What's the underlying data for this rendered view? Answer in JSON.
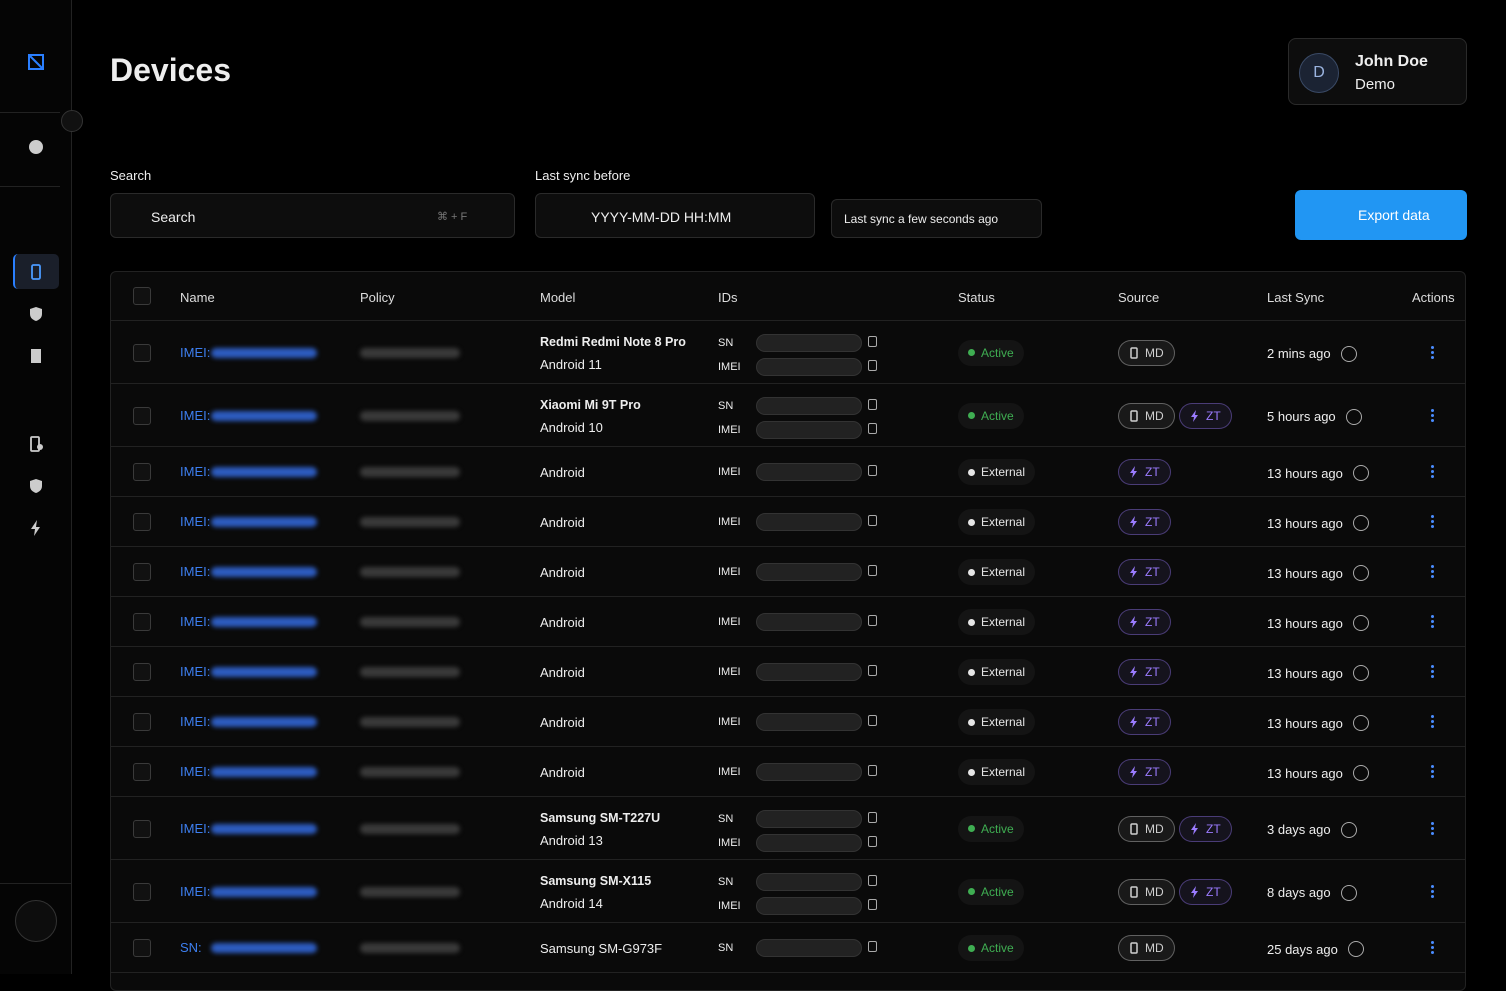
{
  "header": {
    "title": "Devices",
    "user": {
      "initial": "D",
      "name": "John Doe",
      "org": "Demo"
    }
  },
  "filters": {
    "search_label": "Search",
    "search_placeholder": "Search",
    "search_shortcut": "⌘ + F",
    "sync_label": "Last sync before",
    "sync_placeholder": "YYYY-MM-DD HH:MM",
    "last_sync": "Last sync a few seconds ago",
    "export": "Export data"
  },
  "table": {
    "columns": [
      "Name",
      "Policy",
      "Model",
      "IDs",
      "Status",
      "Source",
      "Last Sync",
      "Actions"
    ],
    "rows": [
      {
        "name_prefix": "IMEI:",
        "model": "Redmi Redmi Note 8 Pro",
        "os": "Android 11",
        "ids": [
          "SN",
          "IMEI"
        ],
        "status": {
          "label": "Active",
          "color": "#3fae52"
        },
        "sources": [
          {
            "label": "MD",
            "icon": "phone",
            "color": "#cfcfcf"
          }
        ],
        "last_sync": "2 mins ago"
      },
      {
        "name_prefix": "IMEI:",
        "model": "Xiaomi Mi 9T Pro",
        "os": "Android 10",
        "ids": [
          "SN",
          "IMEI"
        ],
        "status": {
          "label": "Active",
          "color": "#3fae52"
        },
        "sources": [
          {
            "label": "MD",
            "icon": "phone",
            "color": "#cfcfcf"
          },
          {
            "label": "ZT",
            "icon": "bolt",
            "color": "#9b7bff"
          }
        ],
        "last_sync": "5 hours ago"
      },
      {
        "name_prefix": "IMEI:",
        "model": "Android",
        "ids": [
          "IMEI"
        ],
        "status": {
          "label": "External",
          "color": "#e6e6e6"
        },
        "sources": [
          {
            "label": "ZT",
            "icon": "bolt",
            "color": "#9b7bff"
          }
        ],
        "last_sync": "13 hours ago"
      },
      {
        "name_prefix": "IMEI:",
        "model": "Android",
        "ids": [
          "IMEI"
        ],
        "status": {
          "label": "External",
          "color": "#e6e6e6"
        },
        "sources": [
          {
            "label": "ZT",
            "icon": "bolt",
            "color": "#9b7bff"
          }
        ],
        "last_sync": "13 hours ago"
      },
      {
        "name_prefix": "IMEI:",
        "model": "Android",
        "ids": [
          "IMEI"
        ],
        "status": {
          "label": "External",
          "color": "#e6e6e6"
        },
        "sources": [
          {
            "label": "ZT",
            "icon": "bolt",
            "color": "#9b7bff"
          }
        ],
        "last_sync": "13 hours ago"
      },
      {
        "name_prefix": "IMEI:",
        "model": "Android",
        "ids": [
          "IMEI"
        ],
        "status": {
          "label": "External",
          "color": "#e6e6e6"
        },
        "sources": [
          {
            "label": "ZT",
            "icon": "bolt",
            "color": "#9b7bff"
          }
        ],
        "last_sync": "13 hours ago"
      },
      {
        "name_prefix": "IMEI:",
        "model": "Android",
        "ids": [
          "IMEI"
        ],
        "status": {
          "label": "External",
          "color": "#e6e6e6"
        },
        "sources": [
          {
            "label": "ZT",
            "icon": "bolt",
            "color": "#9b7bff"
          }
        ],
        "last_sync": "13 hours ago"
      },
      {
        "name_prefix": "IMEI:",
        "model": "Android",
        "ids": [
          "IMEI"
        ],
        "status": {
          "label": "External",
          "color": "#e6e6e6"
        },
        "sources": [
          {
            "label": "ZT",
            "icon": "bolt",
            "color": "#9b7bff"
          }
        ],
        "last_sync": "13 hours ago"
      },
      {
        "name_prefix": "IMEI:",
        "model": "Android",
        "ids": [
          "IMEI"
        ],
        "status": {
          "label": "External",
          "color": "#e6e6e6"
        },
        "sources": [
          {
            "label": "ZT",
            "icon": "bolt",
            "color": "#9b7bff"
          }
        ],
        "last_sync": "13 hours ago"
      },
      {
        "name_prefix": "IMEI:",
        "model": "Samsung SM-T227U",
        "os": "Android 13",
        "ids": [
          "SN",
          "IMEI"
        ],
        "status": {
          "label": "Active",
          "color": "#3fae52"
        },
        "sources": [
          {
            "label": "MD",
            "icon": "phone",
            "color": "#cfcfcf"
          },
          {
            "label": "ZT",
            "icon": "bolt",
            "color": "#9b7bff"
          }
        ],
        "last_sync": "3 days ago"
      },
      {
        "name_prefix": "IMEI:",
        "model": "Samsung SM-X115",
        "os": "Android 14",
        "ids": [
          "SN",
          "IMEI"
        ],
        "status": {
          "label": "Active",
          "color": "#3fae52"
        },
        "sources": [
          {
            "label": "MD",
            "icon": "phone",
            "color": "#cfcfcf"
          },
          {
            "label": "ZT",
            "icon": "bolt",
            "color": "#9b7bff"
          }
        ],
        "last_sync": "8 days ago"
      },
      {
        "name_prefix": "SN:",
        "model": "Samsung SM-G973F",
        "ids": [
          "SN"
        ],
        "status": {
          "label": "Active",
          "color": "#3fae52"
        },
        "sources": [
          {
            "label": "MD",
            "icon": "phone",
            "color": "#cfcfcf"
          }
        ],
        "last_sync": "25 days ago"
      }
    ]
  }
}
